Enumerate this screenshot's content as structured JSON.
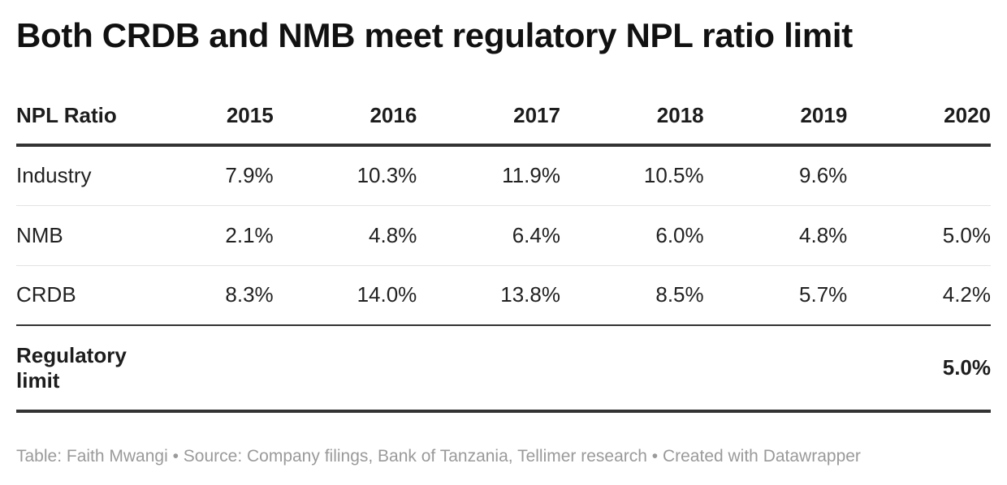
{
  "title": "Both CRDB and NMB meet regulatory NPL ratio limit",
  "chart_data": {
    "type": "table",
    "title": "Both CRDB and NMB meet regulatory NPL ratio limit",
    "columns": [
      "NPL Ratio",
      "2015",
      "2016",
      "2017",
      "2018",
      "2019",
      "2020"
    ],
    "rows": [
      {
        "label": "Industry",
        "cells": [
          "7.9%",
          "10.3%",
          "11.9%",
          "10.5%",
          "9.6%",
          ""
        ]
      },
      {
        "label": "NMB",
        "cells": [
          "2.1%",
          "4.8%",
          "6.4%",
          "6.0%",
          "4.8%",
          "5.0%"
        ]
      },
      {
        "label": "CRDB",
        "cells": [
          "8.3%",
          "14.0%",
          "13.8%",
          "8.5%",
          "5.7%",
          "4.2%"
        ]
      }
    ],
    "summary_row": {
      "label": "Regulatory limit",
      "cells": [
        "",
        "",
        "",
        "",
        "",
        "5.0%"
      ]
    }
  },
  "footer": {
    "text": "Table: Faith Mwangi • Source: Company filings, Bank of Tanzania, Tellimer research • Created with Datawrapper"
  }
}
